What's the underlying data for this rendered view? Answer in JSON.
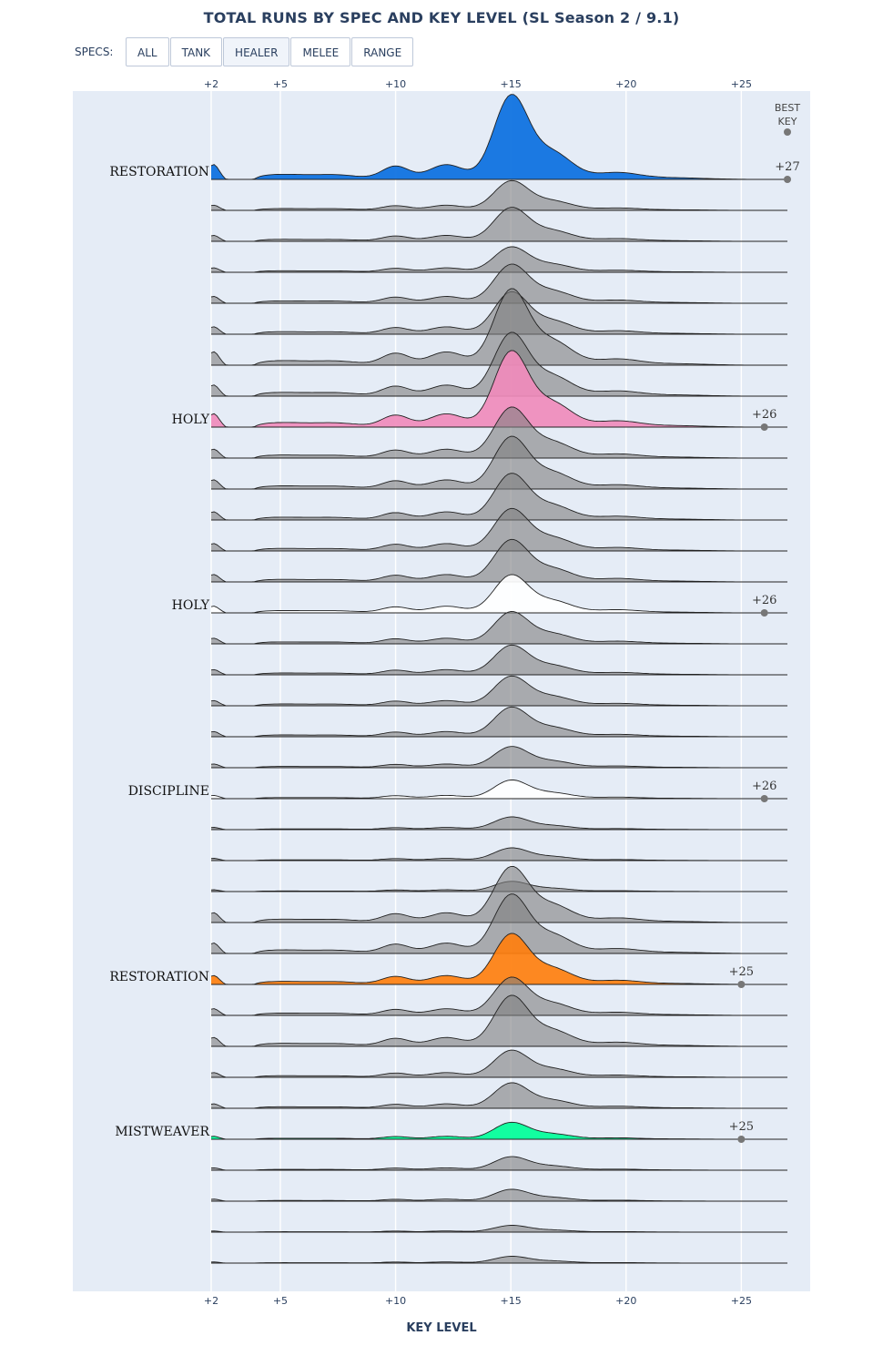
{
  "title": "TOTAL RUNS BY SPEC AND KEY LEVEL (SL Season 2 / 9.1)",
  "filter": {
    "label": "SPECS:",
    "buttons": [
      {
        "label": "ALL",
        "active": false
      },
      {
        "label": "TANK",
        "active": false
      },
      {
        "label": "HEALER",
        "active": true
      },
      {
        "label": "MELEE",
        "active": false
      },
      {
        "label": "RANGE",
        "active": false
      }
    ]
  },
  "chart_data": {
    "type": "area",
    "xlabel": "KEY LEVEL",
    "xlim": [
      2,
      27
    ],
    "x_ticks": [
      "+2",
      "+5",
      "+10",
      "+15",
      "+20",
      "+25"
    ],
    "best_key_header": [
      "BEST",
      "KEY"
    ],
    "row_count": 36,
    "colors": {
      "grey_fill": "#7f7f7f",
      "restoration_druid": "#0a6fe0",
      "holy_paladin": "#f08bbb",
      "holy_priest": "#ffffff",
      "discipline": "#ffffff",
      "restoration_shaman": "#ff7f0e",
      "mistweaver": "#00ff98"
    },
    "highlighted_series": [
      {
        "name": "RESTORATION",
        "row": 0,
        "color": "#0a6fe0",
        "best_key": "+27",
        "best_value": 27,
        "peak": 1.0
      },
      {
        "name": "HOLY",
        "row": 8,
        "color": "#f08bbb",
        "best_key": "+26",
        "best_value": 26,
        "peak": 0.9
      },
      {
        "name": "HOLY",
        "row": 14,
        "color": "#ffffff",
        "best_key": "+26",
        "best_value": 26,
        "peak": 0.45
      },
      {
        "name": "DISCIPLINE",
        "row": 20,
        "color": "#ffffff",
        "best_key": "+26",
        "best_value": 26,
        "peak": 0.22
      },
      {
        "name": "RESTORATION",
        "row": 26,
        "color": "#ff7f0e",
        "best_key": "+25",
        "best_value": 25,
        "peak": 0.6
      },
      {
        "name": "MISTWEAVER",
        "row": 31,
        "color": "#00ff98",
        "best_key": "+25",
        "best_value": 25,
        "peak": 0.2
      }
    ],
    "grey_rows": [
      {
        "row": 1,
        "peak": 0.35
      },
      {
        "row": 2,
        "peak": 0.4
      },
      {
        "row": 3,
        "peak": 0.3
      },
      {
        "row": 4,
        "peak": 0.46
      },
      {
        "row": 5,
        "peak": 0.5
      },
      {
        "row": 6,
        "peak": 0.9
      },
      {
        "row": 7,
        "peak": 0.75
      },
      {
        "row": 9,
        "peak": 0.6
      },
      {
        "row": 10,
        "peak": 0.62
      },
      {
        "row": 11,
        "peak": 0.55
      },
      {
        "row": 12,
        "peak": 0.5
      },
      {
        "row": 13,
        "peak": 0.5
      },
      {
        "row": 15,
        "peak": 0.38
      },
      {
        "row": 16,
        "peak": 0.35
      },
      {
        "row": 17,
        "peak": 0.35
      },
      {
        "row": 18,
        "peak": 0.35
      },
      {
        "row": 19,
        "peak": 0.25
      },
      {
        "row": 21,
        "peak": 0.15
      },
      {
        "row": 22,
        "peak": 0.15
      },
      {
        "row": 23,
        "peak": 0.12
      },
      {
        "row": 24,
        "peak": 0.66
      },
      {
        "row": 25,
        "peak": 0.7
      },
      {
        "row": 27,
        "peak": 0.45
      },
      {
        "row": 28,
        "peak": 0.6
      },
      {
        "row": 29,
        "peak": 0.32
      },
      {
        "row": 30,
        "peak": 0.3
      },
      {
        "row": 32,
        "peak": 0.16
      },
      {
        "row": 33,
        "peak": 0.14
      },
      {
        "row": 34,
        "peak": 0.08
      },
      {
        "row": 35,
        "peak": 0.08
      }
    ],
    "grid": true
  }
}
